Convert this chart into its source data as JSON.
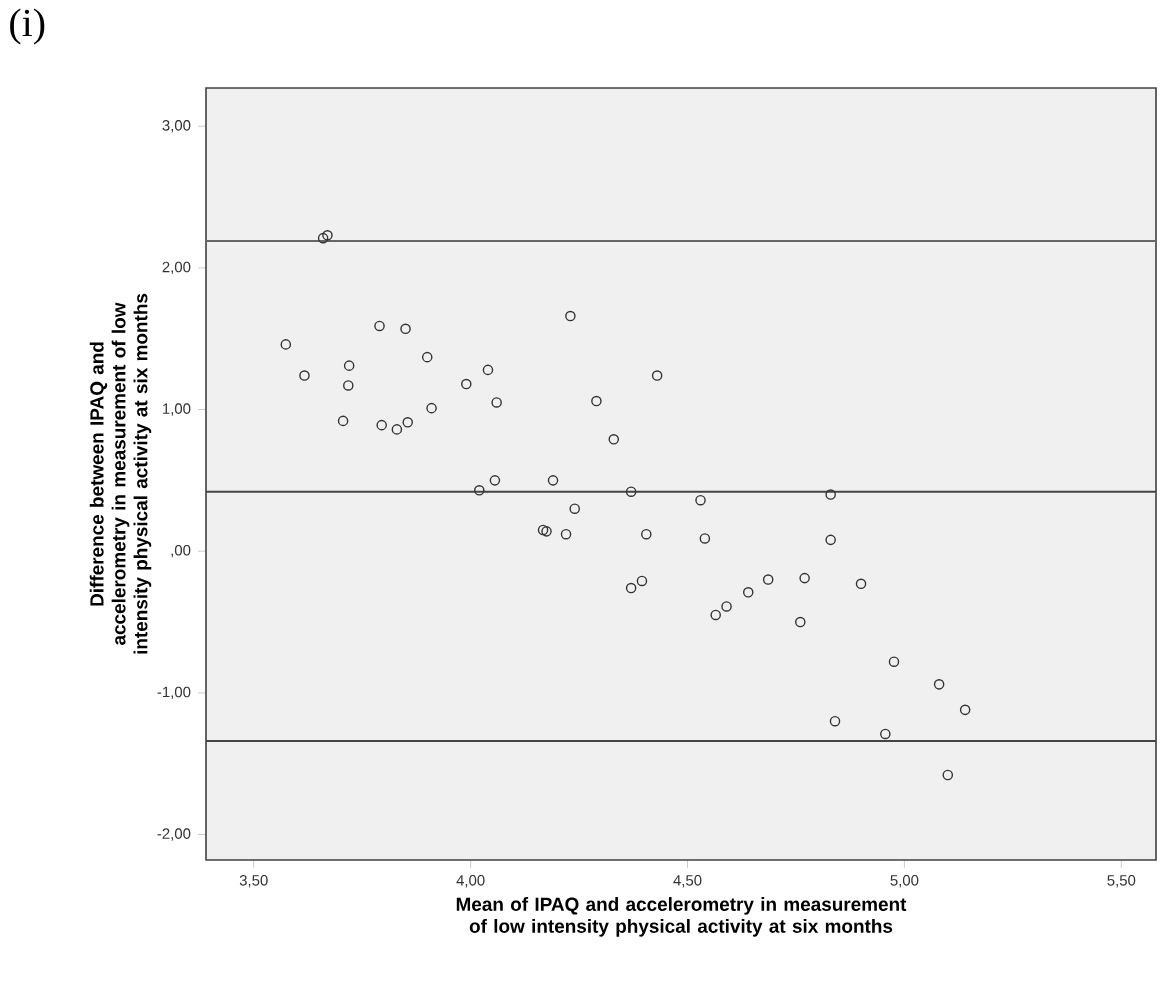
{
  "chart_data": {
    "type": "scatter",
    "title": "(i)",
    "xlabel": "Mean of IPAQ and accelerometry in measurement of low intensity physical activity at six months",
    "ylabel": "Difference between IPAQ and accelerometry in measurement of low intensity physical activity at six months",
    "xlim": [
      3.39,
      5.58
    ],
    "ylim": [
      -2.18,
      3.27
    ],
    "xticks": [
      {
        "value": 3.5,
        "label": "3,50"
      },
      {
        "value": 4.0,
        "label": "4,00"
      },
      {
        "value": 4.5,
        "label": "4,50"
      },
      {
        "value": 5.0,
        "label": "5,00"
      },
      {
        "value": 5.5,
        "label": "5,50"
      }
    ],
    "yticks": [
      {
        "value": -2,
        "label": "-2,00"
      },
      {
        "value": -1,
        "label": "-1,00"
      },
      {
        "value": 0,
        "label": ",00"
      },
      {
        "value": 1,
        "label": "1,00"
      },
      {
        "value": 2,
        "label": "2,00"
      },
      {
        "value": 3,
        "label": "3,00"
      }
    ],
    "grid": false,
    "marker": "circle",
    "ref_lines": [
      {
        "axis": "y",
        "value": 2.19,
        "color": "#666666"
      },
      {
        "axis": "y",
        "value": 0.42,
        "color": "#444444"
      },
      {
        "axis": "y",
        "value": -1.34,
        "color": "#444444"
      }
    ],
    "series": [
      {
        "color": "#333333",
        "x": [
          3.66,
          3.67,
          3.574,
          3.617,
          3.72,
          3.718,
          3.706,
          3.79,
          3.85,
          3.795,
          3.83,
          3.855,
          3.9,
          3.91,
          3.99,
          4.04,
          4.06,
          4.02,
          4.056,
          4.23,
          4.19,
          4.24,
          4.29,
          4.33,
          4.37,
          4.43,
          4.167,
          4.175,
          4.22,
          4.405,
          4.37,
          4.395,
          4.53,
          4.83,
          4.54,
          4.83,
          4.565,
          4.59,
          4.64,
          4.686,
          4.77,
          4.76,
          4.9,
          4.976,
          5.08,
          5.14,
          4.84,
          4.956,
          5.1
        ],
        "values": [
          2.21,
          2.23,
          1.46,
          1.24,
          1.31,
          1.17,
          0.92,
          1.59,
          1.57,
          0.89,
          0.86,
          0.91,
          1.37,
          1.01,
          1.18,
          1.28,
          1.05,
          0.43,
          0.5,
          1.66,
          0.5,
          0.3,
          1.06,
          0.79,
          0.42,
          1.24,
          0.15,
          0.14,
          0.12,
          0.12,
          -0.26,
          -0.21,
          0.36,
          0.4,
          0.09,
          0.08,
          -0.45,
          -0.39,
          -0.29,
          -0.2,
          -0.19,
          -0.5,
          -0.23,
          -0.78,
          -0.94,
          -1.12,
          -1.2,
          -1.29,
          -1.58
        ]
      }
    ]
  }
}
